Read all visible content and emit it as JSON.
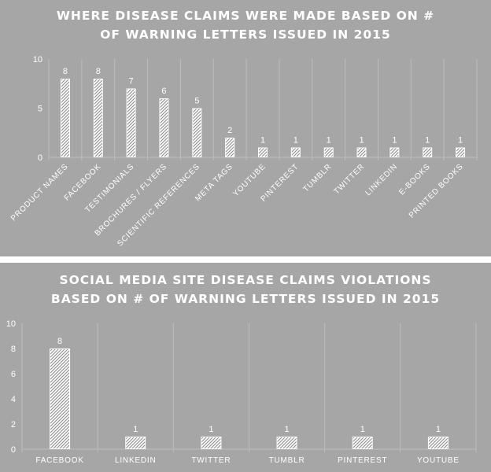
{
  "chart_data": [
    {
      "type": "bar",
      "title_lines": [
        "WHERE DISEASE CLAIMS WERE MADE BASED ON #",
        "OF WARNING LETTERS ISSUED IN 2015"
      ],
      "categories": [
        "PRODUCT NAMES",
        "FACEBOOK",
        "TESTIMONIALS",
        "BROCHURES / FLYERS",
        "SCIENTIFIC REFERENCES",
        "META TAGS",
        "YOUTUBE",
        "PINTEREST",
        "TUMBLR",
        "TWITTER",
        "LINKEDIN",
        "E-BOOKS",
        "PRINTED BOOKS"
      ],
      "values": [
        8,
        8,
        7,
        6,
        5,
        2,
        1,
        1,
        1,
        1,
        1,
        1,
        1
      ],
      "yticks": [
        0,
        5,
        10
      ],
      "ylim": [
        0,
        10
      ],
      "category_label_rotation": "-45deg",
      "data_labels": true,
      "bar_fill": "hatched",
      "colors": {
        "background": "#a6a6a6",
        "bar_fill": "#ffffff",
        "hatch": "#8c8c8c",
        "text": "#ffffff",
        "divider": "#bdbdbd"
      }
    },
    {
      "type": "bar",
      "title_lines": [
        "SOCIAL MEDIA SITE DISEASE CLAIMS VIOLATIONS",
        "BASED ON # OF WARNING LETTERS ISSUED IN 2015"
      ],
      "categories": [
        "FACEBOOK",
        "LINKEDIN",
        "TWITTER",
        "TUMBLR",
        "PINTEREST",
        "YOUTUBE"
      ],
      "values": [
        8,
        1,
        1,
        1,
        1,
        1
      ],
      "yticks": [
        0,
        2,
        4,
        6,
        8,
        10
      ],
      "ylim": [
        0,
        10
      ],
      "category_label_rotation": "0deg",
      "data_labels": true,
      "bar_fill": "hatched",
      "colors": {
        "background": "#a6a6a6",
        "bar_fill": "#ffffff",
        "hatch": "#8c8c8c",
        "text": "#ffffff",
        "divider": "#bdbdbd"
      }
    }
  ]
}
